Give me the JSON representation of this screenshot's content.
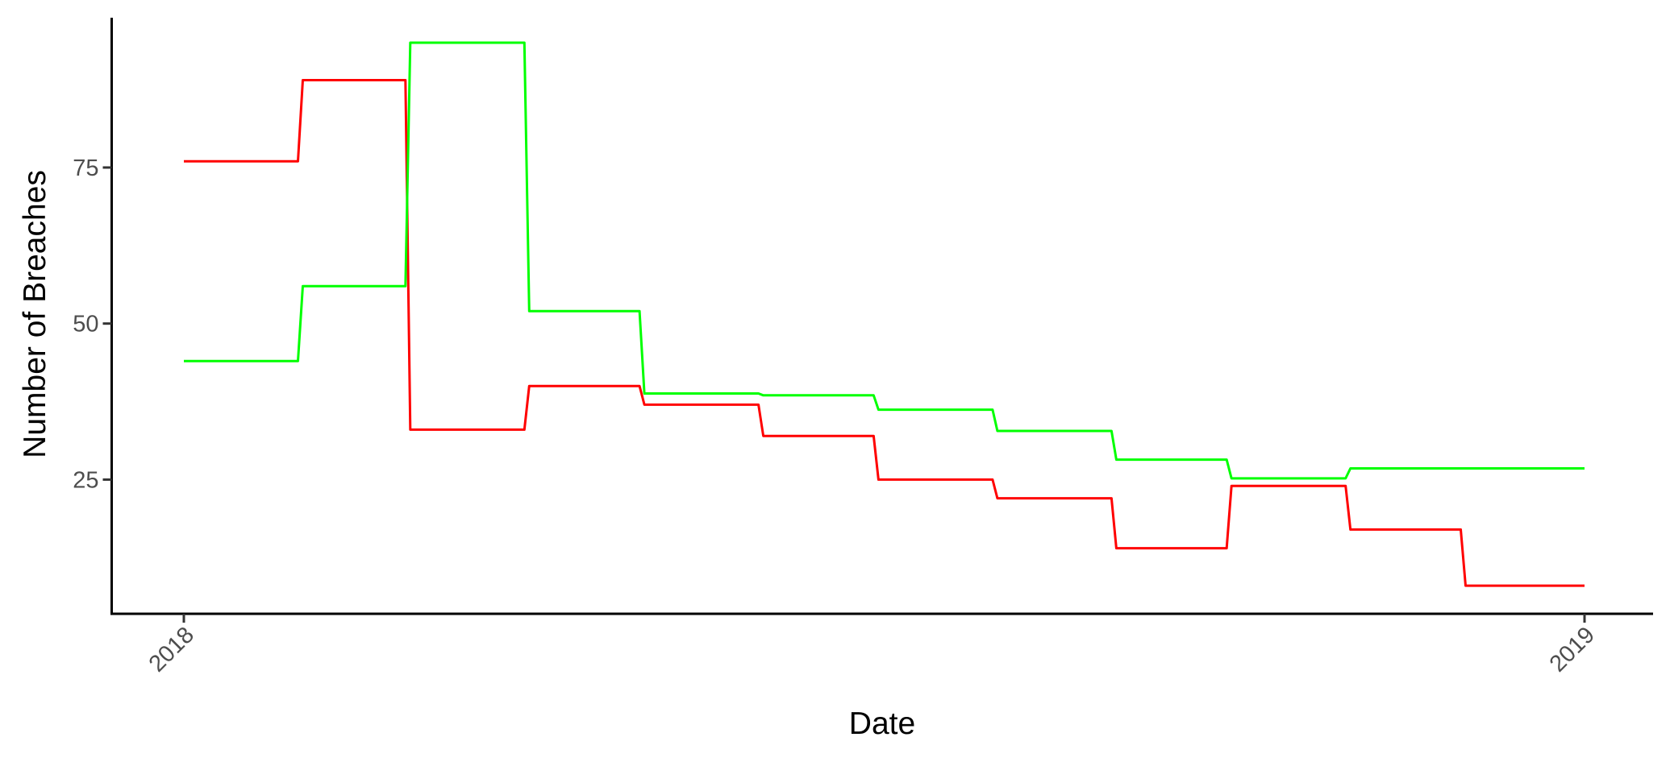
{
  "chart_data": {
    "type": "line",
    "title": "",
    "xlabel": "Date",
    "ylabel": "Number of Breaches",
    "x_axis": {
      "type": "date",
      "range": [
        "2017-12-13",
        "2019-01-19"
      ],
      "ticks": [
        {
          "value": "2018-01-01",
          "label": "2018"
        },
        {
          "value": "2019-01-01",
          "label": "2019"
        }
      ],
      "tick_label_rotation_deg": -45
    },
    "y_axis": {
      "range": [
        3.5,
        99
      ],
      "ticks": [
        25,
        50,
        75
      ]
    },
    "grid": false,
    "legend": "none",
    "x": [
      "2018-01-01",
      "2018-02-01",
      "2018-03-01",
      "2018-04-01",
      "2018-05-01",
      "2018-06-01",
      "2018-07-01",
      "2018-08-01",
      "2018-09-01",
      "2018-10-01",
      "2018-11-01",
      "2018-12-01",
      "2019-01-01"
    ],
    "series": [
      {
        "color": "#ff0000",
        "values": [
          76,
          89,
          33,
          40,
          37,
          32,
          25,
          22,
          14,
          24,
          17,
          8,
          8
        ]
      },
      {
        "color": "#00ff00",
        "values": [
          44,
          56,
          95,
          52,
          38.8,
          38.5,
          36.2,
          32.8,
          28.2,
          25.2,
          26.8,
          26.8,
          26.8
        ]
      }
    ]
  }
}
